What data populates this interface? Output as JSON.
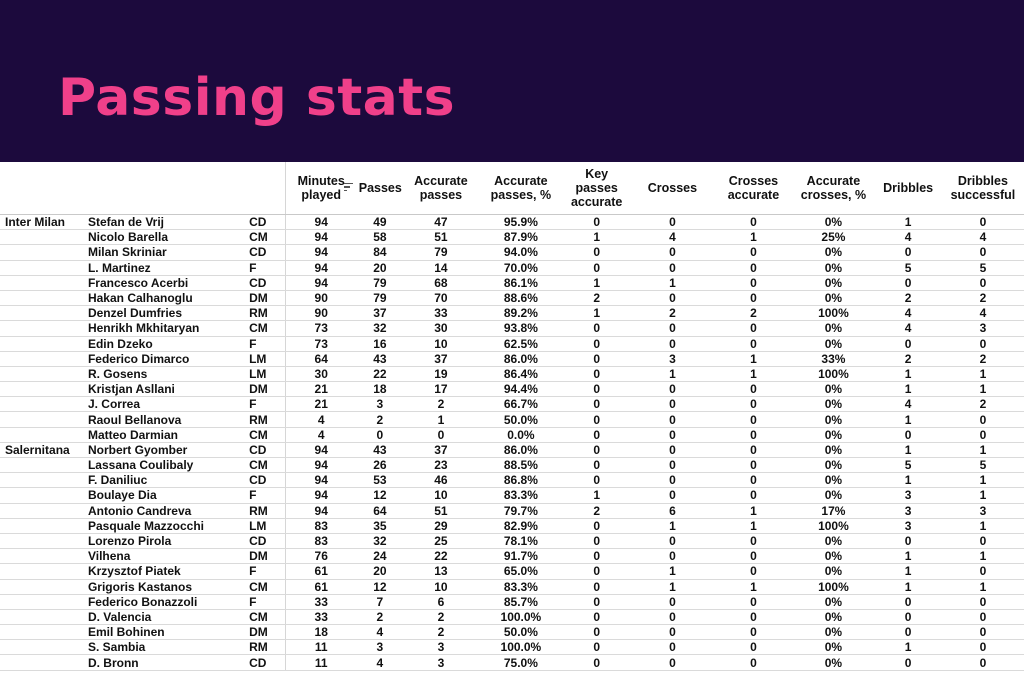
{
  "banner": {
    "title": "Passing stats",
    "bg": "#1c0a3d",
    "title_color": "#f0408a"
  },
  "table": {
    "headers": [
      "Minutes played",
      "Passes",
      "Accurate passes",
      "Accurate passes, %",
      "Key passes accurate",
      "Crosses",
      "Crosses accurate",
      "Accurate crosses, %",
      "Dribbles",
      "Dribbles successful"
    ],
    "sort_icon": "sort-lines-icon",
    "rows": [
      [
        "Inter Milan",
        "Stefan de Vrij",
        "CD",
        "94",
        "49",
        "47",
        "95.9%",
        "0",
        "0",
        "0",
        "0%",
        "1",
        "0"
      ],
      [
        "",
        "Nicolo Barella",
        "CM",
        "94",
        "58",
        "51",
        "87.9%",
        "1",
        "4",
        "1",
        "25%",
        "4",
        "4"
      ],
      [
        "",
        "Milan Skriniar",
        "CD",
        "94",
        "84",
        "79",
        "94.0%",
        "0",
        "0",
        "0",
        "0%",
        "0",
        "0"
      ],
      [
        "",
        "L. Martinez",
        "F",
        "94",
        "20",
        "14",
        "70.0%",
        "0",
        "0",
        "0",
        "0%",
        "5",
        "5"
      ],
      [
        "",
        "Francesco Acerbi",
        "CD",
        "94",
        "79",
        "68",
        "86.1%",
        "1",
        "1",
        "0",
        "0%",
        "0",
        "0"
      ],
      [
        "",
        "Hakan Calhanoglu",
        "DM",
        "90",
        "79",
        "70",
        "88.6%",
        "2",
        "0",
        "0",
        "0%",
        "2",
        "2"
      ],
      [
        "",
        "Denzel Dumfries",
        "RM",
        "90",
        "37",
        "33",
        "89.2%",
        "1",
        "2",
        "2",
        "100%",
        "4",
        "4"
      ],
      [
        "",
        "Henrikh Mkhitaryan",
        "CM",
        "73",
        "32",
        "30",
        "93.8%",
        "0",
        "0",
        "0",
        "0%",
        "4",
        "3"
      ],
      [
        "",
        "Edin Dzeko",
        "F",
        "73",
        "16",
        "10",
        "62.5%",
        "0",
        "0",
        "0",
        "0%",
        "0",
        "0"
      ],
      [
        "",
        "Federico Dimarco",
        "LM",
        "64",
        "43",
        "37",
        "86.0%",
        "0",
        "3",
        "1",
        "33%",
        "2",
        "2"
      ],
      [
        "",
        "R. Gosens",
        "LM",
        "30",
        "22",
        "19",
        "86.4%",
        "0",
        "1",
        "1",
        "100%",
        "1",
        "1"
      ],
      [
        "",
        "Kristjan Asllani",
        "DM",
        "21",
        "18",
        "17",
        "94.4%",
        "0",
        "0",
        "0",
        "0%",
        "1",
        "1"
      ],
      [
        "",
        "J. Correa",
        "F",
        "21",
        "3",
        "2",
        "66.7%",
        "0",
        "0",
        "0",
        "0%",
        "4",
        "2"
      ],
      [
        "",
        "Raoul Bellanova",
        "RM",
        "4",
        "2",
        "1",
        "50.0%",
        "0",
        "0",
        "0",
        "0%",
        "1",
        "0"
      ],
      [
        "",
        "Matteo Darmian",
        "CM",
        "4",
        "0",
        "0",
        "0.0%",
        "0",
        "0",
        "0",
        "0%",
        "0",
        "0"
      ],
      [
        "Salernitana",
        "Norbert Gyomber",
        "CD",
        "94",
        "43",
        "37",
        "86.0%",
        "0",
        "0",
        "0",
        "0%",
        "1",
        "1"
      ],
      [
        "",
        "Lassana Coulibaly",
        "CM",
        "94",
        "26",
        "23",
        "88.5%",
        "0",
        "0",
        "0",
        "0%",
        "5",
        "5"
      ],
      [
        "",
        "F. Daniliuc",
        "CD",
        "94",
        "53",
        "46",
        "86.8%",
        "0",
        "0",
        "0",
        "0%",
        "1",
        "1"
      ],
      [
        "",
        "Boulaye Dia",
        "F",
        "94",
        "12",
        "10",
        "83.3%",
        "1",
        "0",
        "0",
        "0%",
        "3",
        "1"
      ],
      [
        "",
        "Antonio Candreva",
        "RM",
        "94",
        "64",
        "51",
        "79.7%",
        "2",
        "6",
        "1",
        "17%",
        "3",
        "3"
      ],
      [
        "",
        "Pasquale Mazzocchi",
        "LM",
        "83",
        "35",
        "29",
        "82.9%",
        "0",
        "1",
        "1",
        "100%",
        "3",
        "1"
      ],
      [
        "",
        "Lorenzo Pirola",
        "CD",
        "83",
        "32",
        "25",
        "78.1%",
        "0",
        "0",
        "0",
        "0%",
        "0",
        "0"
      ],
      [
        "",
        "Vilhena",
        "DM",
        "76",
        "24",
        "22",
        "91.7%",
        "0",
        "0",
        "0",
        "0%",
        "1",
        "1"
      ],
      [
        "",
        "Krzysztof Piatek",
        "F",
        "61",
        "20",
        "13",
        "65.0%",
        "0",
        "1",
        "0",
        "0%",
        "1",
        "0"
      ],
      [
        "",
        "Grigoris Kastanos",
        "CM",
        "61",
        "12",
        "10",
        "83.3%",
        "0",
        "1",
        "1",
        "100%",
        "1",
        "1"
      ],
      [
        "",
        "Federico Bonazzoli",
        "F",
        "33",
        "7",
        "6",
        "85.7%",
        "0",
        "0",
        "0",
        "0%",
        "0",
        "0"
      ],
      [
        "",
        "D. Valencia",
        "CM",
        "33",
        "2",
        "2",
        "100.0%",
        "0",
        "0",
        "0",
        "0%",
        "0",
        "0"
      ],
      [
        "",
        "Emil Bohinen",
        "DM",
        "18",
        "4",
        "2",
        "50.0%",
        "0",
        "0",
        "0",
        "0%",
        "0",
        "0"
      ],
      [
        "",
        "S. Sambia",
        "RM",
        "11",
        "3",
        "3",
        "100.0%",
        "0",
        "0",
        "0",
        "0%",
        "1",
        "0"
      ],
      [
        "",
        "D. Bronn",
        "CD",
        "11",
        "4",
        "3",
        "75.0%",
        "0",
        "0",
        "0",
        "0%",
        "0",
        "0"
      ]
    ]
  }
}
